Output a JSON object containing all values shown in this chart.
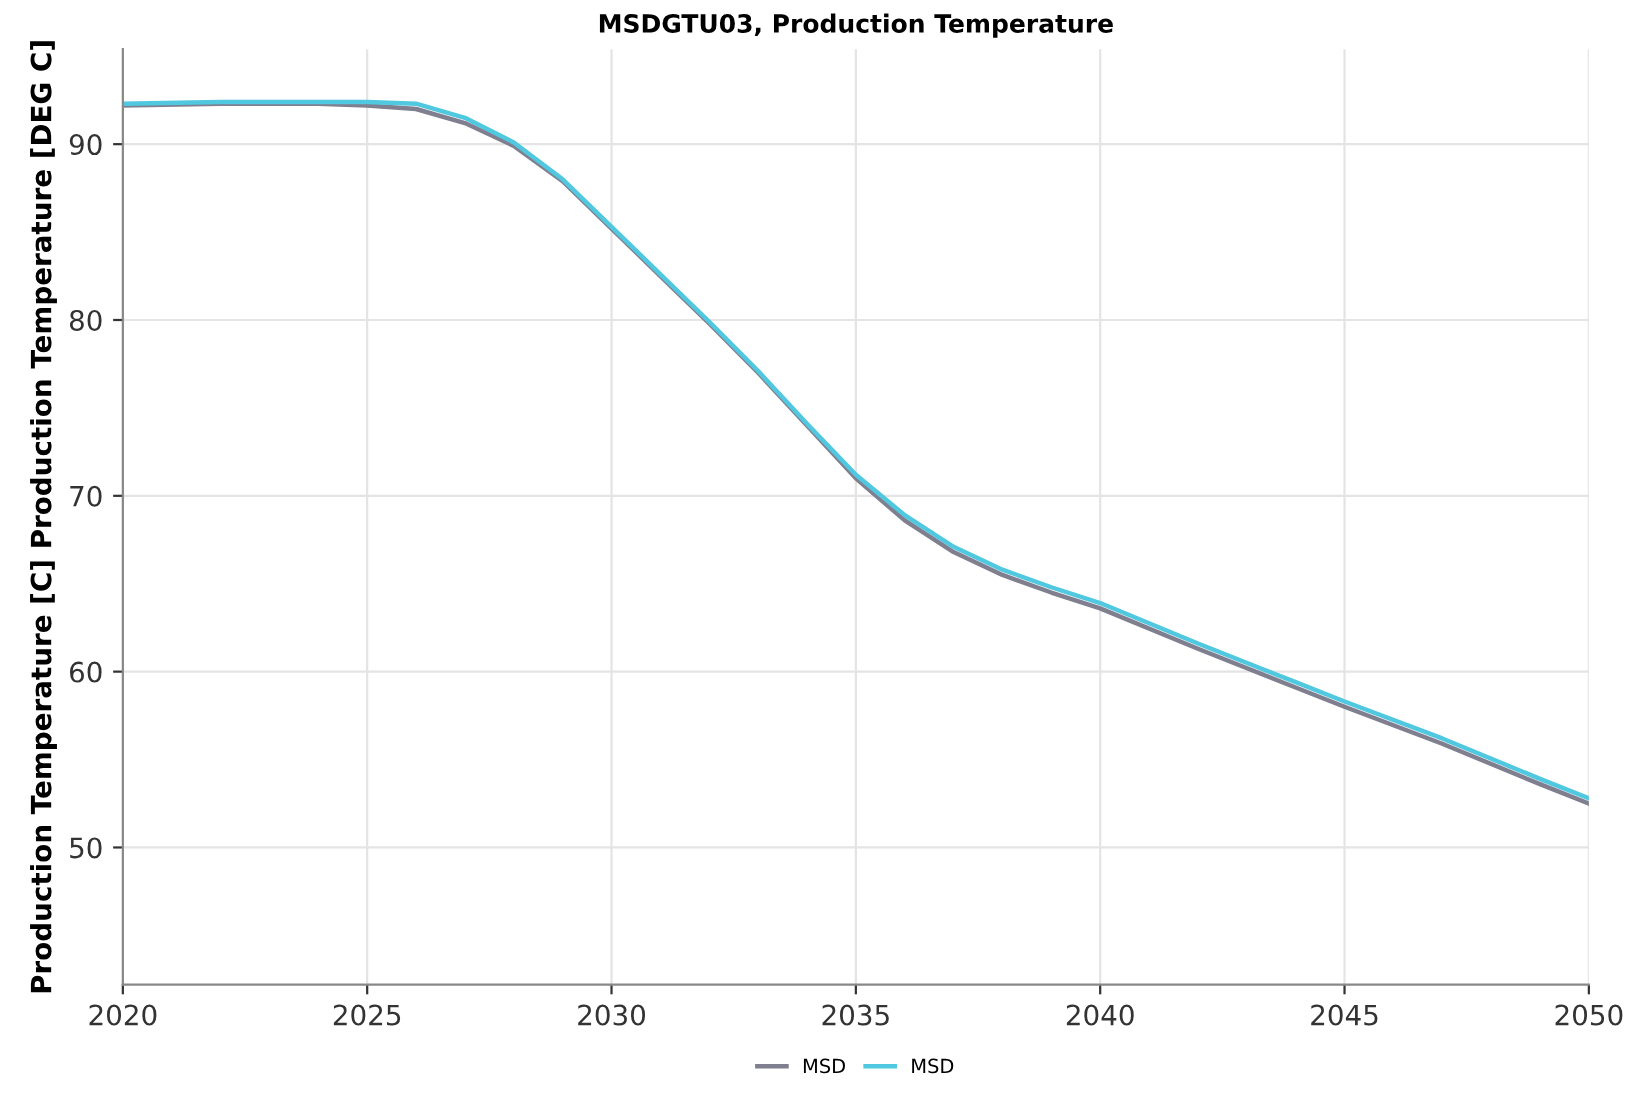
{
  "chart_data": {
    "type": "line",
    "title": "MSDGTU03, Production Temperature",
    "ylabel": "Production Temperature [C] Production Temperature [DEG C]",
    "x": [
      2020,
      2022,
      2024,
      2025,
      2026,
      2027,
      2028,
      2029,
      2030,
      2031,
      2032,
      2033,
      2034,
      2035,
      2036,
      2037,
      2038,
      2039,
      2040,
      2042,
      2044,
      2045,
      2047,
      2049,
      2050
    ],
    "series": [
      {
        "name": "MSD",
        "color": "#7f7f8f",
        "values": [
          92.2,
          92.3,
          92.3,
          92.2,
          92.0,
          91.2,
          89.9,
          87.9,
          85.2,
          82.5,
          79.8,
          77.0,
          74.0,
          71.0,
          68.6,
          66.8,
          65.5,
          64.5,
          63.6,
          61.3,
          59.1,
          58.0,
          55.9,
          53.6,
          52.5
        ]
      },
      {
        "name": "MSD",
        "color": "#4fc8e0",
        "values": [
          92.3,
          92.4,
          92.4,
          92.4,
          92.3,
          91.5,
          90.1,
          88.0,
          85.3,
          82.6,
          79.9,
          77.1,
          74.1,
          71.2,
          68.9,
          67.1,
          65.8,
          64.8,
          63.9,
          61.6,
          59.4,
          58.3,
          56.2,
          53.9,
          52.8
        ]
      }
    ],
    "xlim": [
      2020,
      2050
    ],
    "xticks": [
      2020,
      2025,
      2030,
      2035,
      2040,
      2045,
      2050
    ],
    "ylim": [
      42.2,
      95.4
    ],
    "yticks": [
      50,
      60,
      70,
      80,
      90
    ],
    "grid": true,
    "legend": "bottom"
  }
}
